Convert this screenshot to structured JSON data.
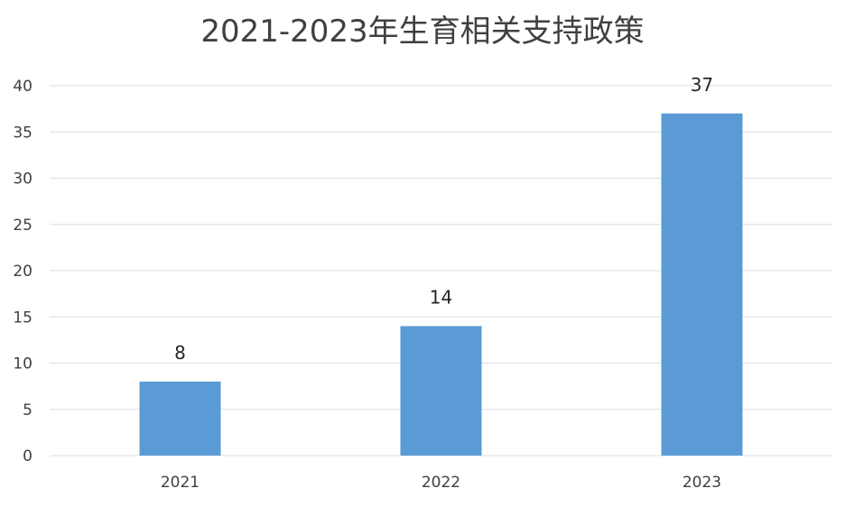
{
  "chart_data": {
    "type": "bar",
    "title": "2021-2023年生育相关支持政策",
    "xlabel": "",
    "ylabel": "",
    "categories": [
      "2021",
      "2022",
      "2023"
    ],
    "values": [
      8,
      14,
      37
    ],
    "data_labels": [
      "8",
      "14",
      "37"
    ],
    "ylim": [
      0,
      40
    ],
    "yticks": [
      0,
      5,
      10,
      15,
      20,
      25,
      30,
      35,
      40
    ],
    "grid": true,
    "legend": "none",
    "colors": {
      "bar": "#5b9bd5",
      "grid": "#d9dfe8",
      "text": "#404040"
    }
  }
}
